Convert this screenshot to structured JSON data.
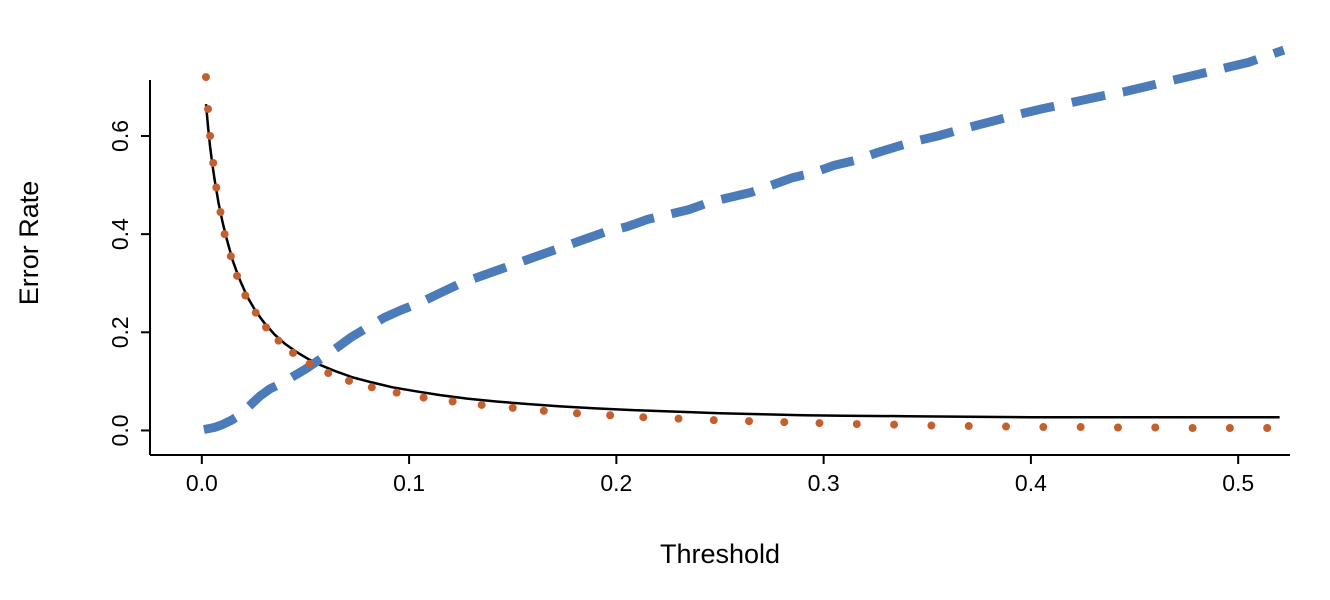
{
  "chart_data": {
    "type": "line",
    "title": "",
    "xlabel": "Threshold",
    "ylabel": "Error Rate",
    "xlim": [
      -0.025,
      0.525
    ],
    "ylim": [
      -0.05,
      0.82
    ],
    "grid": false,
    "legend": "none",
    "x_ticks": [
      0.0,
      0.1,
      0.2,
      0.3,
      0.4,
      0.5
    ],
    "x_tick_labels": [
      "0.0",
      "0.1",
      "0.2",
      "0.3",
      "0.4",
      "0.5"
    ],
    "y_ticks": [
      0.0,
      0.2,
      0.4,
      0.6
    ],
    "y_tick_labels": [
      "0.0",
      "0.2",
      "0.4",
      "0.6"
    ],
    "colors": {
      "axis": "#000000",
      "black_line": "#000000",
      "blue_dashed": "#4b7bb8",
      "orange_dots": "#c55f2d"
    },
    "series": [
      {
        "name": "black-solid-line",
        "style": "solid",
        "color": "#000000",
        "width": 2.5,
        "points": [
          [
            0.002,
            0.665
          ],
          [
            0.003,
            0.62
          ],
          [
            0.004,
            0.578
          ],
          [
            0.005,
            0.545
          ],
          [
            0.006,
            0.515
          ],
          [
            0.008,
            0.465
          ],
          [
            0.01,
            0.425
          ],
          [
            0.012,
            0.39
          ],
          [
            0.015,
            0.345
          ],
          [
            0.018,
            0.31
          ],
          [
            0.022,
            0.272
          ],
          [
            0.026,
            0.243
          ],
          [
            0.03,
            0.22
          ],
          [
            0.035,
            0.196
          ],
          [
            0.04,
            0.177
          ],
          [
            0.046,
            0.159
          ],
          [
            0.052,
            0.144
          ],
          [
            0.058,
            0.132
          ],
          [
            0.065,
            0.12
          ],
          [
            0.073,
            0.108
          ],
          [
            0.082,
            0.098
          ],
          [
            0.092,
            0.088
          ],
          [
            0.103,
            0.08
          ],
          [
            0.115,
            0.072
          ],
          [
            0.128,
            0.065
          ],
          [
            0.142,
            0.059
          ],
          [
            0.157,
            0.054
          ],
          [
            0.173,
            0.049
          ],
          [
            0.19,
            0.045
          ],
          [
            0.21,
            0.041
          ],
          [
            0.23,
            0.038
          ],
          [
            0.25,
            0.035
          ],
          [
            0.27,
            0.033
          ],
          [
            0.29,
            0.031
          ],
          [
            0.31,
            0.03
          ],
          [
            0.34,
            0.029
          ],
          [
            0.37,
            0.028
          ],
          [
            0.4,
            0.027
          ],
          [
            0.43,
            0.027
          ],
          [
            0.46,
            0.027
          ],
          [
            0.49,
            0.027
          ],
          [
            0.52,
            0.027
          ]
        ]
      },
      {
        "name": "blue-dashed-line",
        "style": "dashed",
        "color": "#4b7bb8",
        "width": 9,
        "dash": [
          34,
          18
        ],
        "points": [
          [
            0.001,
            0.002
          ],
          [
            0.006,
            0.006
          ],
          [
            0.01,
            0.012
          ],
          [
            0.014,
            0.02
          ],
          [
            0.018,
            0.03
          ],
          [
            0.023,
            0.05
          ],
          [
            0.028,
            0.07
          ],
          [
            0.033,
            0.085
          ],
          [
            0.038,
            0.095
          ],
          [
            0.044,
            0.11
          ],
          [
            0.05,
            0.125
          ],
          [
            0.057,
            0.145
          ],
          [
            0.064,
            0.165
          ],
          [
            0.072,
            0.19
          ],
          [
            0.08,
            0.21
          ],
          [
            0.088,
            0.23
          ],
          [
            0.096,
            0.245
          ],
          [
            0.105,
            0.26
          ],
          [
            0.115,
            0.28
          ],
          [
            0.125,
            0.3
          ],
          [
            0.135,
            0.315
          ],
          [
            0.145,
            0.33
          ],
          [
            0.155,
            0.345
          ],
          [
            0.165,
            0.36
          ],
          [
            0.175,
            0.375
          ],
          [
            0.185,
            0.39
          ],
          [
            0.195,
            0.405
          ],
          [
            0.205,
            0.415
          ],
          [
            0.215,
            0.43
          ],
          [
            0.225,
            0.44
          ],
          [
            0.235,
            0.45
          ],
          [
            0.245,
            0.465
          ],
          [
            0.255,
            0.475
          ],
          [
            0.265,
            0.485
          ],
          [
            0.275,
            0.5
          ],
          [
            0.285,
            0.515
          ],
          [
            0.295,
            0.525
          ],
          [
            0.305,
            0.54
          ],
          [
            0.315,
            0.55
          ],
          [
            0.325,
            0.565
          ],
          [
            0.335,
            0.578
          ],
          [
            0.345,
            0.59
          ],
          [
            0.355,
            0.6
          ],
          [
            0.365,
            0.612
          ],
          [
            0.375,
            0.623
          ],
          [
            0.385,
            0.634
          ],
          [
            0.395,
            0.645
          ],
          [
            0.405,
            0.655
          ],
          [
            0.415,
            0.664
          ],
          [
            0.425,
            0.673
          ],
          [
            0.435,
            0.682
          ],
          [
            0.445,
            0.69
          ],
          [
            0.455,
            0.7
          ],
          [
            0.465,
            0.71
          ],
          [
            0.475,
            0.72
          ],
          [
            0.485,
            0.73
          ],
          [
            0.495,
            0.74
          ],
          [
            0.505,
            0.75
          ],
          [
            0.515,
            0.765
          ],
          [
            0.522,
            0.775
          ]
        ]
      },
      {
        "name": "orange-dotted-points",
        "style": "dots",
        "color": "#c55f2d",
        "radius": 4,
        "points": [
          [
            0.002,
            0.72
          ],
          [
            0.003,
            0.655
          ],
          [
            0.004,
            0.6
          ],
          [
            0.0055,
            0.545
          ],
          [
            0.007,
            0.495
          ],
          [
            0.009,
            0.445
          ],
          [
            0.011,
            0.4
          ],
          [
            0.014,
            0.355
          ],
          [
            0.017,
            0.315
          ],
          [
            0.021,
            0.275
          ],
          [
            0.026,
            0.24
          ],
          [
            0.031,
            0.21
          ],
          [
            0.037,
            0.183
          ],
          [
            0.044,
            0.158
          ],
          [
            0.052,
            0.136
          ],
          [
            0.061,
            0.117
          ],
          [
            0.071,
            0.101
          ],
          [
            0.082,
            0.088
          ],
          [
            0.094,
            0.077
          ],
          [
            0.107,
            0.067
          ],
          [
            0.121,
            0.059
          ],
          [
            0.135,
            0.052
          ],
          [
            0.15,
            0.046
          ],
          [
            0.165,
            0.04
          ],
          [
            0.181,
            0.035
          ],
          [
            0.197,
            0.031
          ],
          [
            0.213,
            0.027
          ],
          [
            0.23,
            0.024
          ],
          [
            0.247,
            0.021
          ],
          [
            0.264,
            0.019
          ],
          [
            0.281,
            0.017
          ],
          [
            0.298,
            0.015
          ],
          [
            0.316,
            0.013
          ],
          [
            0.334,
            0.012
          ],
          [
            0.352,
            0.01
          ],
          [
            0.37,
            0.009
          ],
          [
            0.388,
            0.008
          ],
          [
            0.406,
            0.007
          ],
          [
            0.424,
            0.007
          ],
          [
            0.442,
            0.006
          ],
          [
            0.46,
            0.006
          ],
          [
            0.478,
            0.005
          ],
          [
            0.496,
            0.005
          ],
          [
            0.514,
            0.005
          ]
        ]
      }
    ]
  }
}
